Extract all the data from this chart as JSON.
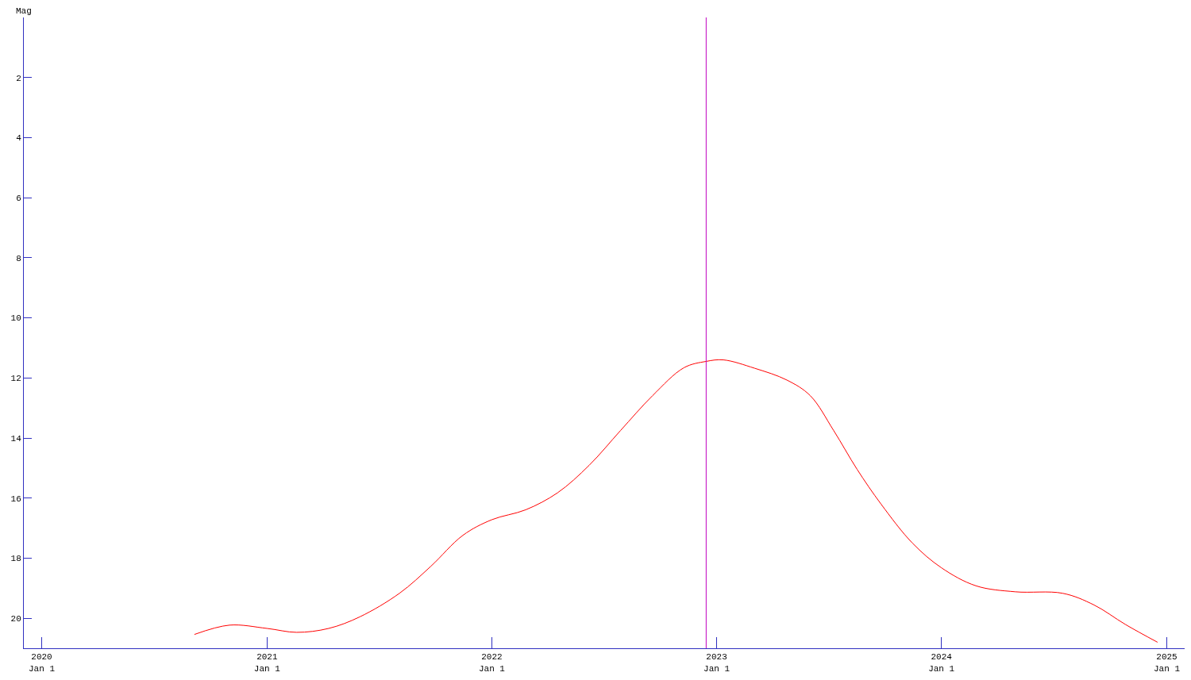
{
  "chart_data": {
    "type": "line",
    "ylabel": "Mag",
    "xlim": [
      "2019-12-03",
      "2025-01-30"
    ],
    "ylim": [
      21,
      0
    ],
    "xticks": [
      {
        "value": "2020-01-01",
        "label": "2020\nJan 1"
      },
      {
        "value": "2021-01-01",
        "label": "2021\nJan 1"
      },
      {
        "value": "2022-01-01",
        "label": "2022\nJan 1"
      },
      {
        "value": "2023-01-01",
        "label": "2023\nJan 1"
      },
      {
        "value": "2024-01-01",
        "label": "2024\nJan 1"
      },
      {
        "value": "2025-01-01",
        "label": "2025\nJan 1"
      }
    ],
    "yticks": [
      2,
      4,
      6,
      8,
      10,
      12,
      14,
      16,
      18,
      20
    ],
    "marker": "none",
    "line_style": "solid",
    "ref_lines": [
      {
        "axis": "x",
        "value": "2022-12-15",
        "color": "#c000c0"
      }
    ],
    "series": [
      {
        "color": "#ff0000",
        "x": [
          "2020-09-05",
          "2020-11-01",
          "2021-01-01",
          "2021-02-18",
          "2021-04-11",
          "2021-06-01",
          "2021-08-04",
          "2021-09-24",
          "2021-11-15",
          "2022-01-01",
          "2022-02-25",
          "2022-04-18",
          "2022-06-08",
          "2022-07-29",
          "2022-09-19",
          "2022-11-09",
          "2022-12-15",
          "2023-01-12",
          "2023-03-04",
          "2023-04-25",
          "2023-06-02",
          "2023-07-10",
          "2023-08-17",
          "2023-09-25",
          "2023-11-15",
          "2024-01-01",
          "2024-02-26",
          "2024-04-30",
          "2024-07-16",
          "2024-09-05",
          "2024-10-26",
          "2024-12-17"
        ],
        "values": [
          20.54,
          20.23,
          20.34,
          20.47,
          20.34,
          19.95,
          19.17,
          18.27,
          17.24,
          16.72,
          16.39,
          15.82,
          14.91,
          13.75,
          12.59,
          11.66,
          11.45,
          11.4,
          11.68,
          12.07,
          12.59,
          13.75,
          15.04,
          16.2,
          17.5,
          18.32,
          18.92,
          19.12,
          19.17,
          19.56,
          20.21,
          20.8
        ]
      }
    ]
  }
}
